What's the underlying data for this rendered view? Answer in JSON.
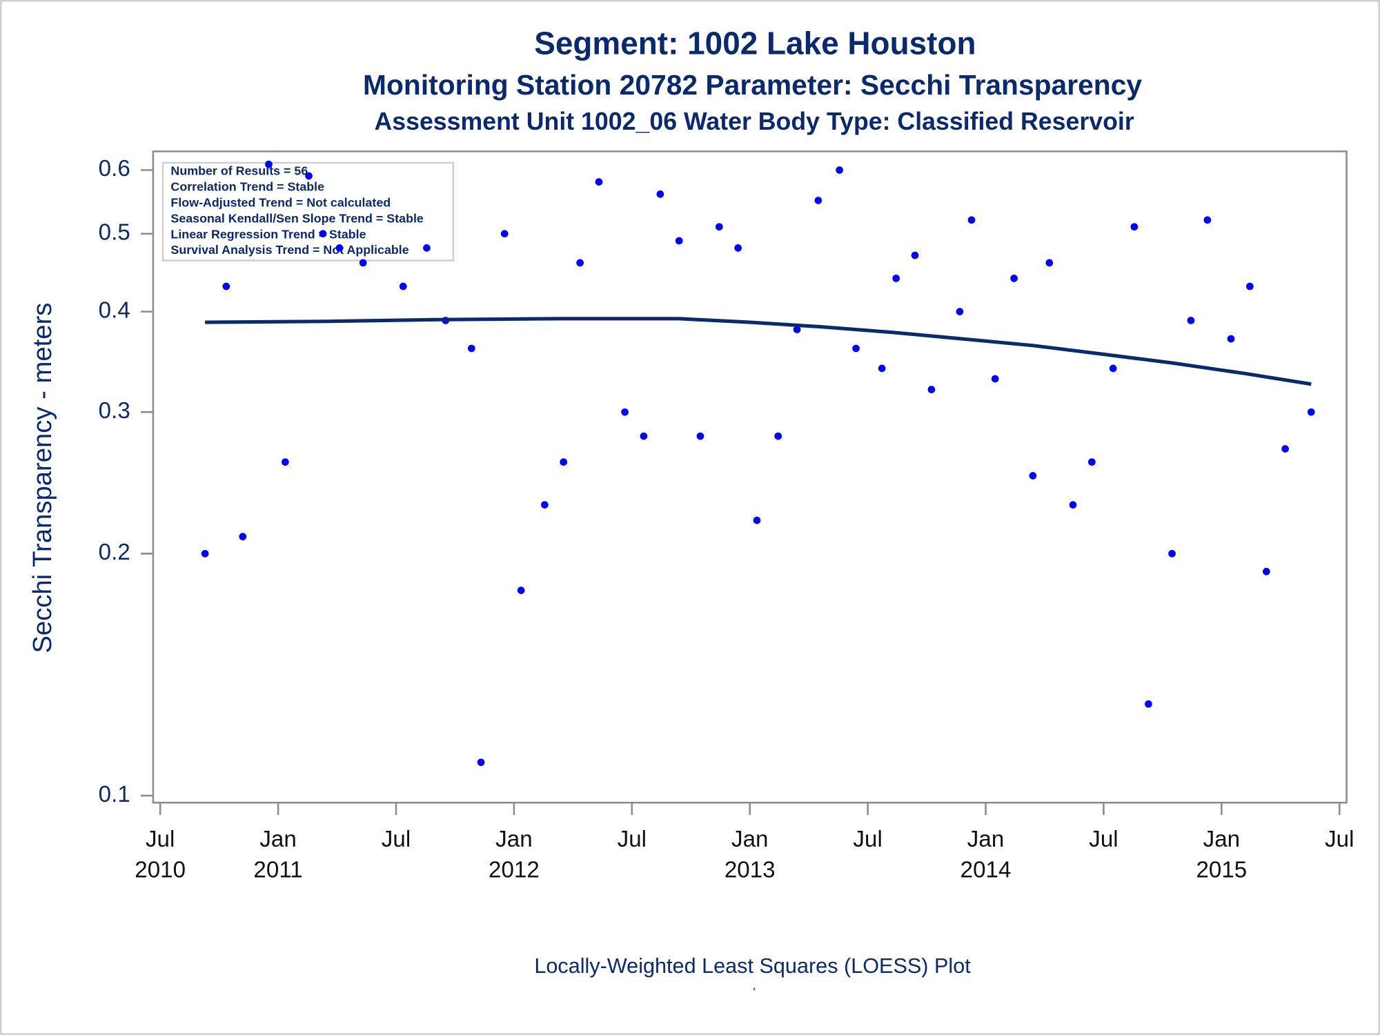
{
  "chart_data": {
    "type": "scatter",
    "title": "Segment: 1002  Lake Houston",
    "subtitle": "Monitoring Station 20782 Parameter: Secchi Transparency",
    "subtitle2": "Assessment Unit 1002_06   Water Body Type: Classified Reservoir",
    "ylabel": "Secchi Transparency - meters",
    "xlabel": "Locally-Weighted Least Squares (LOESS) Plot",
    "footnote": "'",
    "inset_text": [
      "Number of Results = 56",
      "Correlation Trend = Stable",
      "Flow-Adjusted Trend = Not calculated",
      "Seasonal Kendall/Sen Slope Trend = Stable",
      "Linear Regression Trend = Stable",
      "Survival Analysis Trend = Not Applicable"
    ],
    "log_y": true,
    "xlim": [
      2010.47,
      2015.53
    ],
    "ylim": [
      0.098,
      0.633
    ],
    "yticks": [
      0.1,
      0.2,
      0.3,
      0.4,
      0.5,
      0.6
    ],
    "xticks": [
      {
        "value": 2010.5,
        "label": "Jul 2010"
      },
      {
        "value": 2011.0,
        "label": "Jan 2011"
      },
      {
        "value": 2011.5,
        "label": "Jul"
      },
      {
        "value": 2012.0,
        "label": "Jan 2012"
      },
      {
        "value": 2012.5,
        "label": "Jul"
      },
      {
        "value": 2013.0,
        "label": "Jan 2013"
      },
      {
        "value": 2013.5,
        "label": "Jul"
      },
      {
        "value": 2014.0,
        "label": "Jan 2014"
      },
      {
        "value": 2014.5,
        "label": "Jul"
      },
      {
        "value": 2015.0,
        "label": "Jan 2015"
      },
      {
        "value": 2015.5,
        "label": "Jul"
      }
    ],
    "series": [
      {
        "type": "scatter",
        "color": "#0000ff",
        "x": [
          2010.69,
          2010.78,
          2010.85,
          2010.96,
          2011.03,
          2011.13,
          2011.19,
          2011.26,
          2011.36,
          2011.53,
          2011.63,
          2011.71,
          2011.82,
          2011.86,
          2011.96,
          2012.03,
          2012.13,
          2012.21,
          2012.28,
          2012.36,
          2012.47,
          2012.55,
          2012.62,
          2012.7,
          2012.79,
          2012.87,
          2012.95,
          2013.03,
          2013.12,
          2013.2,
          2013.29,
          2013.38,
          2013.45,
          2013.56,
          2013.62,
          2013.7,
          2013.77,
          2013.89,
          2013.94,
          2014.04,
          2014.12,
          2014.2,
          2014.27,
          2014.37,
          2014.45,
          2014.54,
          2014.63,
          2014.69,
          2014.79,
          2014.87,
          2014.94,
          2015.04,
          2015.12,
          2015.19,
          2015.27,
          2015.38
        ],
        "values": [
          0.2,
          0.43,
          0.21,
          0.61,
          0.26,
          0.59,
          0.5,
          0.48,
          0.46,
          0.43,
          0.48,
          0.39,
          0.36,
          0.11,
          0.5,
          0.18,
          0.23,
          0.26,
          0.46,
          0.58,
          0.3,
          0.28,
          0.56,
          0.49,
          0.28,
          0.51,
          0.48,
          0.22,
          0.28,
          0.38,
          0.55,
          0.6,
          0.36,
          0.34,
          0.44,
          0.47,
          0.32,
          0.4,
          0.52,
          0.33,
          0.44,
          0.25,
          0.46,
          0.23,
          0.26,
          0.34,
          0.51,
          0.13,
          0.2,
          0.39,
          0.52,
          0.37,
          0.43,
          0.19,
          0.27,
          0.3
        ]
      },
      {
        "type": "line",
        "color": "#0a2a6e",
        "x": [
          2010.69,
          2011.2,
          2011.7,
          2012.2,
          2012.7,
          2013.0,
          2013.3,
          2013.6,
          2013.9,
          2014.2,
          2014.5,
          2014.8,
          2015.1,
          2015.38
        ],
        "values": [
          0.388,
          0.389,
          0.391,
          0.392,
          0.392,
          0.388,
          0.383,
          0.377,
          0.37,
          0.363,
          0.354,
          0.345,
          0.335,
          0.325
        ]
      }
    ]
  }
}
